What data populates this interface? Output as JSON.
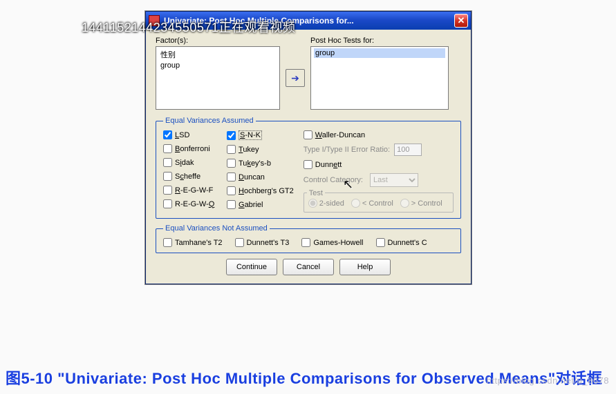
{
  "overlay": "1441152144234550571正在观看视频",
  "watermark": "https://blog.csdn.net/u_8678",
  "caption": "图5-10 \"Univariate: Post Hoc Multiple Comparisons for Observed Means\"对话框",
  "dialog": {
    "title": "Univariate: Post Hoc Multiple Comparisons for...",
    "factors_label": "Factor(s):",
    "posthoc_label": "Post Hoc Tests for:",
    "factors": [
      "性别",
      "group"
    ],
    "posthoc": [
      "group"
    ],
    "eq_assumed_legend": "Equal Variances Assumed",
    "eq_not_legend": "Equal Variances Not Assumed",
    "col1": [
      {
        "label": "LSD",
        "checked": true
      },
      {
        "label": "Bonferroni",
        "checked": false
      },
      {
        "label": "Sidak",
        "checked": false
      },
      {
        "label": "Scheffe",
        "checked": false
      },
      {
        "label": "R-E-G-W-F",
        "checked": false
      },
      {
        "label": "R-E-G-W-Q",
        "checked": false
      }
    ],
    "col2": [
      {
        "label": "S-N-K",
        "checked": true,
        "focus": true
      },
      {
        "label": "Tukey",
        "checked": false
      },
      {
        "label": "Tukey's-b",
        "checked": false
      },
      {
        "label": "Duncan",
        "checked": false
      },
      {
        "label": "Hochberg's GT2",
        "checked": false
      },
      {
        "label": "Gabriel",
        "checked": false
      }
    ],
    "waller_label": "Waller-Duncan",
    "ratio_label": "Type I/Type II Error Ratio:",
    "ratio_value": "100",
    "dunnett_label": "Dunnett",
    "control_label": "Control Category:",
    "control_value": "Last",
    "test_legend": "Test",
    "test_opts": [
      "2-sided",
      "< Control",
      "> Control"
    ],
    "not_assumed": [
      "Tamhane's T2",
      "Dunnett's T3",
      "Games-Howell",
      "Dunnett's C"
    ],
    "buttons": {
      "continue": "Continue",
      "cancel": "Cancel",
      "help": "Help"
    }
  }
}
